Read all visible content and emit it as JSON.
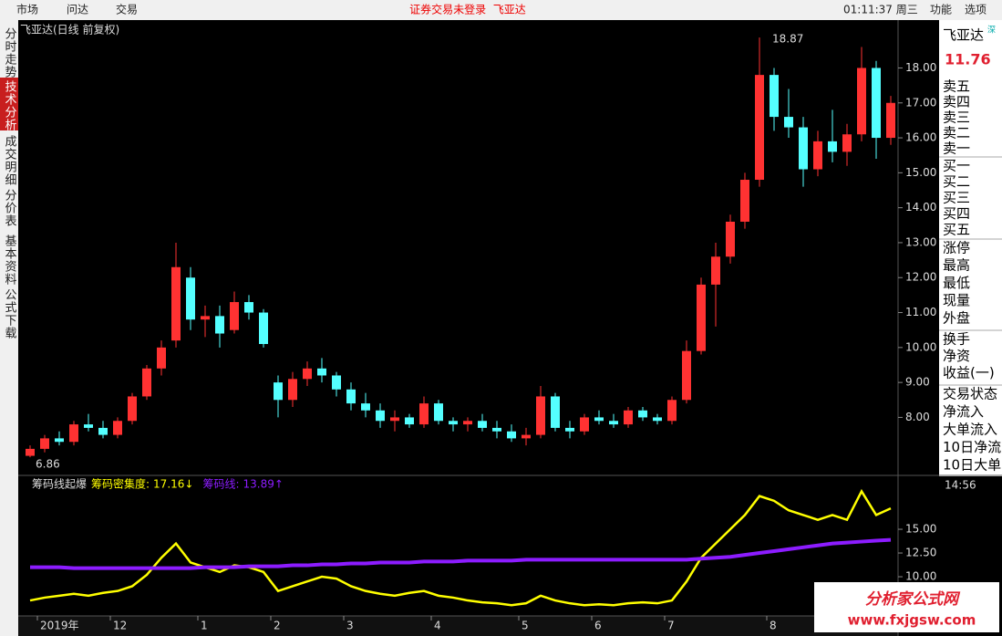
{
  "menu": {
    "left": [
      "市场",
      "问达",
      "交易"
    ],
    "notice": "证券交易未登录  飞亚达",
    "clock": "01:11:37 周三",
    "right": [
      "功能",
      "选项"
    ]
  },
  "tabs": [
    "分时走势",
    "技术分析",
    "成交明细",
    "分价表",
    "基本资料",
    "公式下载"
  ],
  "chart_data": [
    {
      "type": "candlestick",
      "title": "飞亚达(日线 前复权)",
      "categories": [
        null,
        "2019年",
        null,
        null,
        null,
        null,
        "12",
        null,
        null,
        null,
        null,
        null,
        "1",
        null,
        null,
        null,
        null,
        "2",
        null,
        null,
        null,
        null,
        "3",
        null,
        null,
        null,
        null,
        null,
        "4",
        null,
        null,
        null,
        null,
        null,
        "5",
        null,
        null,
        null,
        null,
        "6",
        null,
        null,
        null,
        null,
        "7",
        null,
        null,
        null,
        null,
        null,
        null,
        "8",
        null,
        null,
        null,
        null,
        null,
        null,
        null,
        null
      ],
      "candles": [
        [
          6.9,
          7.2,
          6.86,
          7.1
        ],
        [
          7.1,
          7.5,
          7.0,
          7.4
        ],
        [
          7.4,
          7.6,
          7.2,
          7.3
        ],
        [
          7.3,
          7.9,
          7.2,
          7.8
        ],
        [
          7.8,
          8.1,
          7.6,
          7.7
        ],
        [
          7.7,
          7.9,
          7.4,
          7.5
        ],
        [
          7.5,
          8.0,
          7.4,
          7.9
        ],
        [
          7.9,
          8.7,
          7.8,
          8.6
        ],
        [
          8.6,
          9.5,
          8.5,
          9.4
        ],
        [
          9.4,
          10.2,
          9.2,
          10.0
        ],
        [
          10.2,
          13.0,
          10.0,
          12.3
        ],
        [
          12.0,
          12.3,
          10.5,
          10.8
        ],
        [
          10.8,
          11.2,
          10.3,
          10.9
        ],
        [
          10.9,
          11.2,
          10.0,
          10.4
        ],
        [
          10.5,
          11.6,
          10.4,
          11.3
        ],
        [
          11.3,
          11.5,
          10.8,
          11.0
        ],
        [
          11.0,
          11.1,
          10.0,
          10.1
        ],
        [
          9.0,
          9.2,
          8.0,
          8.5
        ],
        [
          8.5,
          9.3,
          8.3,
          9.1
        ],
        [
          9.1,
          9.6,
          8.9,
          9.4
        ],
        [
          9.4,
          9.7,
          9.0,
          9.2
        ],
        [
          9.2,
          9.3,
          8.6,
          8.8
        ],
        [
          8.8,
          9.0,
          8.2,
          8.4
        ],
        [
          8.4,
          8.7,
          8.0,
          8.2
        ],
        [
          8.2,
          8.4,
          7.7,
          7.9
        ],
        [
          7.9,
          8.2,
          7.6,
          8.0
        ],
        [
          8.0,
          8.1,
          7.7,
          7.8
        ],
        [
          7.8,
          8.6,
          7.7,
          8.4
        ],
        [
          8.4,
          8.5,
          7.8,
          7.9
        ],
        [
          7.9,
          8.0,
          7.6,
          7.8
        ],
        [
          7.8,
          8.0,
          7.6,
          7.9
        ],
        [
          7.9,
          8.1,
          7.6,
          7.7
        ],
        [
          7.7,
          7.9,
          7.4,
          7.6
        ],
        [
          7.6,
          7.8,
          7.3,
          7.4
        ],
        [
          7.4,
          7.7,
          7.2,
          7.5
        ],
        [
          7.5,
          8.9,
          7.4,
          8.6
        ],
        [
          8.6,
          8.7,
          7.6,
          7.7
        ],
        [
          7.7,
          7.9,
          7.4,
          7.6
        ],
        [
          7.6,
          8.1,
          7.5,
          8.0
        ],
        [
          8.0,
          8.2,
          7.8,
          7.9
        ],
        [
          7.9,
          8.1,
          7.7,
          7.8
        ],
        [
          7.8,
          8.3,
          7.7,
          8.2
        ],
        [
          8.2,
          8.3,
          7.9,
          8.0
        ],
        [
          8.0,
          8.1,
          7.8,
          7.9
        ],
        [
          7.9,
          8.6,
          7.8,
          8.5
        ],
        [
          8.5,
          10.2,
          8.4,
          9.9
        ],
        [
          9.9,
          12.0,
          9.8,
          11.8
        ],
        [
          11.8,
          13.0,
          10.6,
          12.6
        ],
        [
          12.6,
          13.8,
          12.4,
          13.6
        ],
        [
          13.6,
          15.0,
          13.4,
          14.8
        ],
        [
          14.8,
          18.87,
          14.6,
          17.8
        ],
        [
          17.8,
          18.0,
          16.2,
          16.6
        ],
        [
          16.6,
          17.4,
          16.0,
          16.3
        ],
        [
          16.3,
          16.6,
          14.6,
          15.1
        ],
        [
          15.1,
          16.2,
          14.9,
          15.9
        ],
        [
          15.9,
          16.8,
          15.3,
          15.6
        ],
        [
          15.6,
          16.4,
          15.2,
          16.1
        ],
        [
          16.1,
          18.6,
          15.9,
          18.0
        ],
        [
          18.0,
          18.2,
          15.4,
          16.0
        ],
        [
          16.0,
          17.2,
          15.8,
          17.0
        ]
      ],
      "up_color": "#ff3232",
      "down_color": "#54ffff",
      "annotations": [
        "18.87",
        "6.86"
      ],
      "ylim": [
        6.34,
        19.37
      ],
      "yticks": [
        {
          "value": 8,
          "label": "8.00"
        },
        {
          "value": 9,
          "label": "9.00"
        },
        {
          "value": 10,
          "label": "10.00"
        },
        {
          "value": 11,
          "label": "11.00"
        },
        {
          "value": 12,
          "label": "12.00"
        },
        {
          "value": 13,
          "label": "13.00"
        },
        {
          "value": 14,
          "label": "14.00"
        },
        {
          "value": 15,
          "label": "15.00"
        },
        {
          "value": 16,
          "label": "16.00"
        },
        {
          "value": 17,
          "label": "17.00"
        },
        {
          "value": 18,
          "label": "18.00"
        }
      ]
    },
    {
      "type": "line",
      "title": "筹码线起爆",
      "series": [
        {
          "name": "筹码密集度:",
          "readout": "17.16↓",
          "color": "#ffff00",
          "values": [
            7.5,
            7.8,
            8.0,
            8.2,
            8.0,
            8.3,
            8.5,
            9.0,
            10.2,
            12.0,
            13.5,
            11.5,
            11.0,
            10.5,
            11.2,
            11.0,
            10.5,
            8.5,
            9.0,
            9.5,
            10.0,
            9.8,
            9.0,
            8.5,
            8.2,
            8.0,
            8.3,
            8.5,
            8.0,
            7.8,
            7.5,
            7.3,
            7.2,
            7.0,
            7.2,
            8.0,
            7.5,
            7.2,
            7.0,
            7.1,
            7.0,
            7.2,
            7.3,
            7.2,
            7.5,
            9.5,
            12.0,
            13.5,
            15.0,
            16.5,
            18.5,
            18.0,
            17.0,
            16.5,
            16.0,
            16.5,
            16.0,
            19.0,
            16.5,
            17.2
          ]
        },
        {
          "name": "筹码线:",
          "readout": "13.89↑",
          "color": "#8c1cff",
          "values": [
            11.0,
            11.0,
            11.0,
            10.9,
            10.9,
            10.9,
            10.9,
            10.9,
            10.9,
            10.9,
            10.9,
            10.9,
            11.0,
            11.0,
            11.0,
            11.1,
            11.1,
            11.1,
            11.2,
            11.2,
            11.3,
            11.3,
            11.4,
            11.4,
            11.5,
            11.5,
            11.5,
            11.6,
            11.6,
            11.6,
            11.7,
            11.7,
            11.7,
            11.7,
            11.8,
            11.8,
            11.8,
            11.8,
            11.8,
            11.8,
            11.8,
            11.8,
            11.8,
            11.8,
            11.8,
            11.8,
            11.9,
            12.0,
            12.1,
            12.3,
            12.5,
            12.7,
            12.9,
            13.1,
            13.3,
            13.5,
            13.6,
            13.7,
            13.8,
            13.89
          ]
        }
      ],
      "ylim": [
        5.87,
        20.58
      ],
      "yticks": [
        {
          "value": 10,
          "label": "10.00"
        },
        {
          "value": 12.5,
          "label": "12.50"
        },
        {
          "value": 15,
          "label": "15.00"
        }
      ]
    }
  ],
  "panel": {
    "name": "飞亚达",
    "market": "深",
    "price": "11.76",
    "time": "14:56",
    "groups": [
      [
        "卖五",
        "卖四",
        "卖三",
        "卖二",
        "卖一"
      ],
      [
        "买一",
        "买二",
        "买三",
        "买四",
        "买五"
      ],
      [
        "涨停",
        "最高",
        "最低",
        "现量",
        "外盘"
      ],
      [
        "换手",
        "净资",
        "收益(一)"
      ],
      [
        "交易状态",
        "净流入",
        "大单流入",
        "10日净流",
        "10日大单"
      ]
    ]
  },
  "logo": {
    "title": "分析家公式网",
    "url": "www.fxjgsw.com"
  }
}
